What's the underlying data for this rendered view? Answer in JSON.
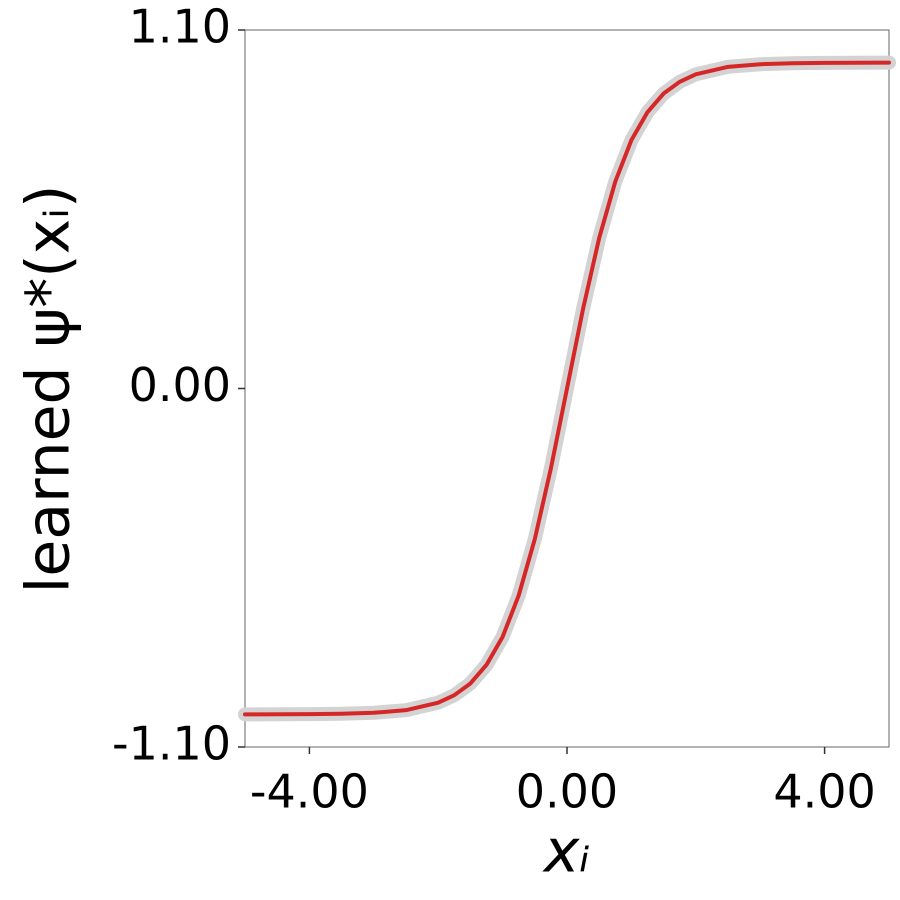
{
  "chart_data": {
    "type": "line",
    "x_label": "xᵢ",
    "y_label": "learned ψ*(xᵢ)",
    "x": [
      -5,
      -4,
      -3.5,
      -3,
      -2.5,
      -2,
      -1.75,
      -1.5,
      -1.25,
      -1,
      -0.75,
      -0.5,
      -0.25,
      0,
      0.25,
      0.5,
      0.75,
      1,
      1.25,
      1.5,
      1.75,
      2,
      2.5,
      3,
      3.5,
      4,
      5
    ],
    "series": [
      {
        "color": "#d3d3d3",
        "values": [
          -1.0,
          -0.999,
          -0.998,
          -0.995,
          -0.987,
          -0.964,
          -0.941,
          -0.905,
          -0.848,
          -0.762,
          -0.635,
          -0.462,
          -0.245,
          0,
          0.245,
          0.462,
          0.635,
          0.762,
          0.848,
          0.905,
          0.941,
          0.964,
          0.987,
          0.995,
          0.998,
          0.999,
          1.0
        ]
      },
      {
        "color": "#d62728",
        "values": [
          -1.0,
          -0.999,
          -0.998,
          -0.995,
          -0.987,
          -0.964,
          -0.941,
          -0.905,
          -0.848,
          -0.762,
          -0.635,
          -0.462,
          -0.245,
          0,
          0.245,
          0.462,
          0.635,
          0.762,
          0.848,
          0.905,
          0.941,
          0.964,
          0.987,
          0.995,
          0.998,
          0.999,
          1.0
        ]
      }
    ],
    "xlim": [
      -5,
      5
    ],
    "ylim": [
      -1.1,
      1.1
    ],
    "xticks": [
      {
        "value": -4,
        "label": "-4.00"
      },
      {
        "value": 0,
        "label": "0.00"
      },
      {
        "value": 4,
        "label": "4.00"
      }
    ],
    "yticks": [
      {
        "value": -1.1,
        "label": "-1.10"
      },
      {
        "value": 0,
        "label": "0.00"
      },
      {
        "value": 1.1,
        "label": "1.10"
      }
    ]
  }
}
